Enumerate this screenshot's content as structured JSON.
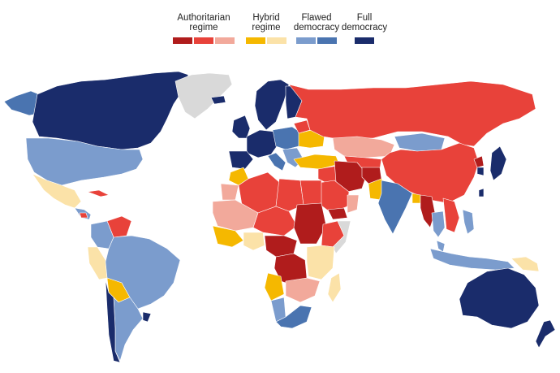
{
  "legend": {
    "groups": [
      {
        "label": "Authoritarian\nregime",
        "colors": [
          "#b01c1c",
          "#e8423a",
          "#f2a99b"
        ]
      },
      {
        "label": "Hybrid\nregime",
        "colors": [
          "#f5b800",
          "#fbe2a8"
        ]
      },
      {
        "label": "Flawed\ndemocracy",
        "colors": [
          "#7b9ccd",
          "#4a74b0"
        ]
      },
      {
        "label": "Full\ndemocracy",
        "colors": [
          "#1a2c6b"
        ]
      }
    ]
  },
  "colors": {
    "auth_dark": "#b01c1c",
    "auth_mid": "#e8423a",
    "auth_light": "#f2a99b",
    "hybrid_dark": "#f5b800",
    "hybrid_light": "#fbe2a8",
    "flawed_light": "#7b9ccd",
    "flawed_dark": "#4a74b0",
    "full": "#1a2c6b",
    "no_data": "#d9d9d9"
  },
  "regions": [
    {
      "name": "canada",
      "category": "full"
    },
    {
      "name": "alaska",
      "category": "flawed_dark"
    },
    {
      "name": "greenland",
      "category": "no_data"
    },
    {
      "name": "usa",
      "category": "flawed_light"
    },
    {
      "name": "mexico",
      "category": "hybrid_light"
    },
    {
      "name": "central-america",
      "category": "flawed_light"
    },
    {
      "name": "nicaragua",
      "category": "auth_mid"
    },
    {
      "name": "cuba",
      "category": "auth_mid"
    },
    {
      "name": "venezuela",
      "category": "auth_mid"
    },
    {
      "name": "colombia",
      "category": "flawed_light"
    },
    {
      "name": "peru",
      "category": "hybrid_light"
    },
    {
      "name": "brazil",
      "category": "flawed_light"
    },
    {
      "name": "bolivia",
      "category": "hybrid_dark"
    },
    {
      "name": "argentina",
      "category": "flawed_light"
    },
    {
      "name": "chile",
      "category": "full"
    },
    {
      "name": "uruguay",
      "category": "full"
    },
    {
      "name": "norway-sweden",
      "category": "full"
    },
    {
      "name": "finland",
      "category": "full"
    },
    {
      "name": "iceland",
      "category": "full"
    },
    {
      "name": "uk-ireland",
      "category": "full"
    },
    {
      "name": "western-europe",
      "category": "full"
    },
    {
      "name": "central-europe",
      "category": "flawed_dark"
    },
    {
      "name": "iberia",
      "category": "full"
    },
    {
      "name": "italy",
      "category": "flawed_dark"
    },
    {
      "name": "balkans",
      "category": "flawed_light"
    },
    {
      "name": "ukraine",
      "category": "hybrid_dark"
    },
    {
      "name": "belarus",
      "category": "auth_mid"
    },
    {
      "name": "russia",
      "category": "auth_mid"
    },
    {
      "name": "turkey",
      "category": "hybrid_dark"
    },
    {
      "name": "kazakhstan",
      "category": "auth_light"
    },
    {
      "name": "central-asia",
      "category": "auth_mid"
    },
    {
      "name": "mongolia",
      "category": "flawed_light"
    },
    {
      "name": "china",
      "category": "auth_mid"
    },
    {
      "name": "iran",
      "category": "auth_dark"
    },
    {
      "name": "afghanistan",
      "category": "auth_dark"
    },
    {
      "name": "iraq-syria",
      "category": "auth_mid"
    },
    {
      "name": "saudi-arabia",
      "category": "auth_mid"
    },
    {
      "name": "yemen",
      "category": "auth_dark"
    },
    {
      "name": "oman",
      "category": "auth_light"
    },
    {
      "name": "pakistan",
      "category": "hybrid_dark"
    },
    {
      "name": "india",
      "category": "flawed_dark"
    },
    {
      "name": "bangladesh",
      "category": "hybrid_dark"
    },
    {
      "name": "myanmar",
      "category": "auth_dark"
    },
    {
      "name": "thailand",
      "category": "flawed_light"
    },
    {
      "name": "indochina",
      "category": "auth_mid"
    },
    {
      "name": "malaysia",
      "category": "flawed_light"
    },
    {
      "name": "indonesia",
      "category": "flawed_light"
    },
    {
      "name": "philippines",
      "category": "flawed_light"
    },
    {
      "name": "papua",
      "category": "hybrid_light"
    },
    {
      "name": "north-korea",
      "category": "auth_dark"
    },
    {
      "name": "south-korea",
      "category": "full"
    },
    {
      "name": "japan",
      "category": "full"
    },
    {
      "name": "taiwan",
      "category": "full"
    },
    {
      "name": "australia",
      "category": "full"
    },
    {
      "name": "new-zealand",
      "category": "full"
    },
    {
      "name": "morocco",
      "category": "hybrid_dark"
    },
    {
      "name": "western-sahara",
      "category": "auth_light"
    },
    {
      "name": "algeria",
      "category": "auth_mid"
    },
    {
      "name": "libya",
      "category": "auth_mid"
    },
    {
      "name": "egypt",
      "category": "auth_mid"
    },
    {
      "name": "mauritania-mali",
      "category": "auth_light"
    },
    {
      "name": "niger-chad",
      "category": "auth_mid"
    },
    {
      "name": "sudan",
      "category": "auth_dark"
    },
    {
      "name": "ethiopia",
      "category": "auth_mid"
    },
    {
      "name": "west-africa",
      "category": "hybrid_dark"
    },
    {
      "name": "nigeria",
      "category": "hybrid_light"
    },
    {
      "name": "central-africa",
      "category": "auth_dark"
    },
    {
      "name": "drc",
      "category": "auth_dark"
    },
    {
      "name": "east-africa",
      "category": "hybrid_light"
    },
    {
      "name": "somalia",
      "category": "no_data"
    },
    {
      "name": "angola",
      "category": "hybrid_dark"
    },
    {
      "name": "zambia-zimbabwe",
      "category": "auth_light"
    },
    {
      "name": "namibia",
      "category": "flawed_light"
    },
    {
      "name": "south-africa",
      "category": "flawed_dark"
    },
    {
      "name": "madagascar",
      "category": "hybrid_light"
    }
  ]
}
